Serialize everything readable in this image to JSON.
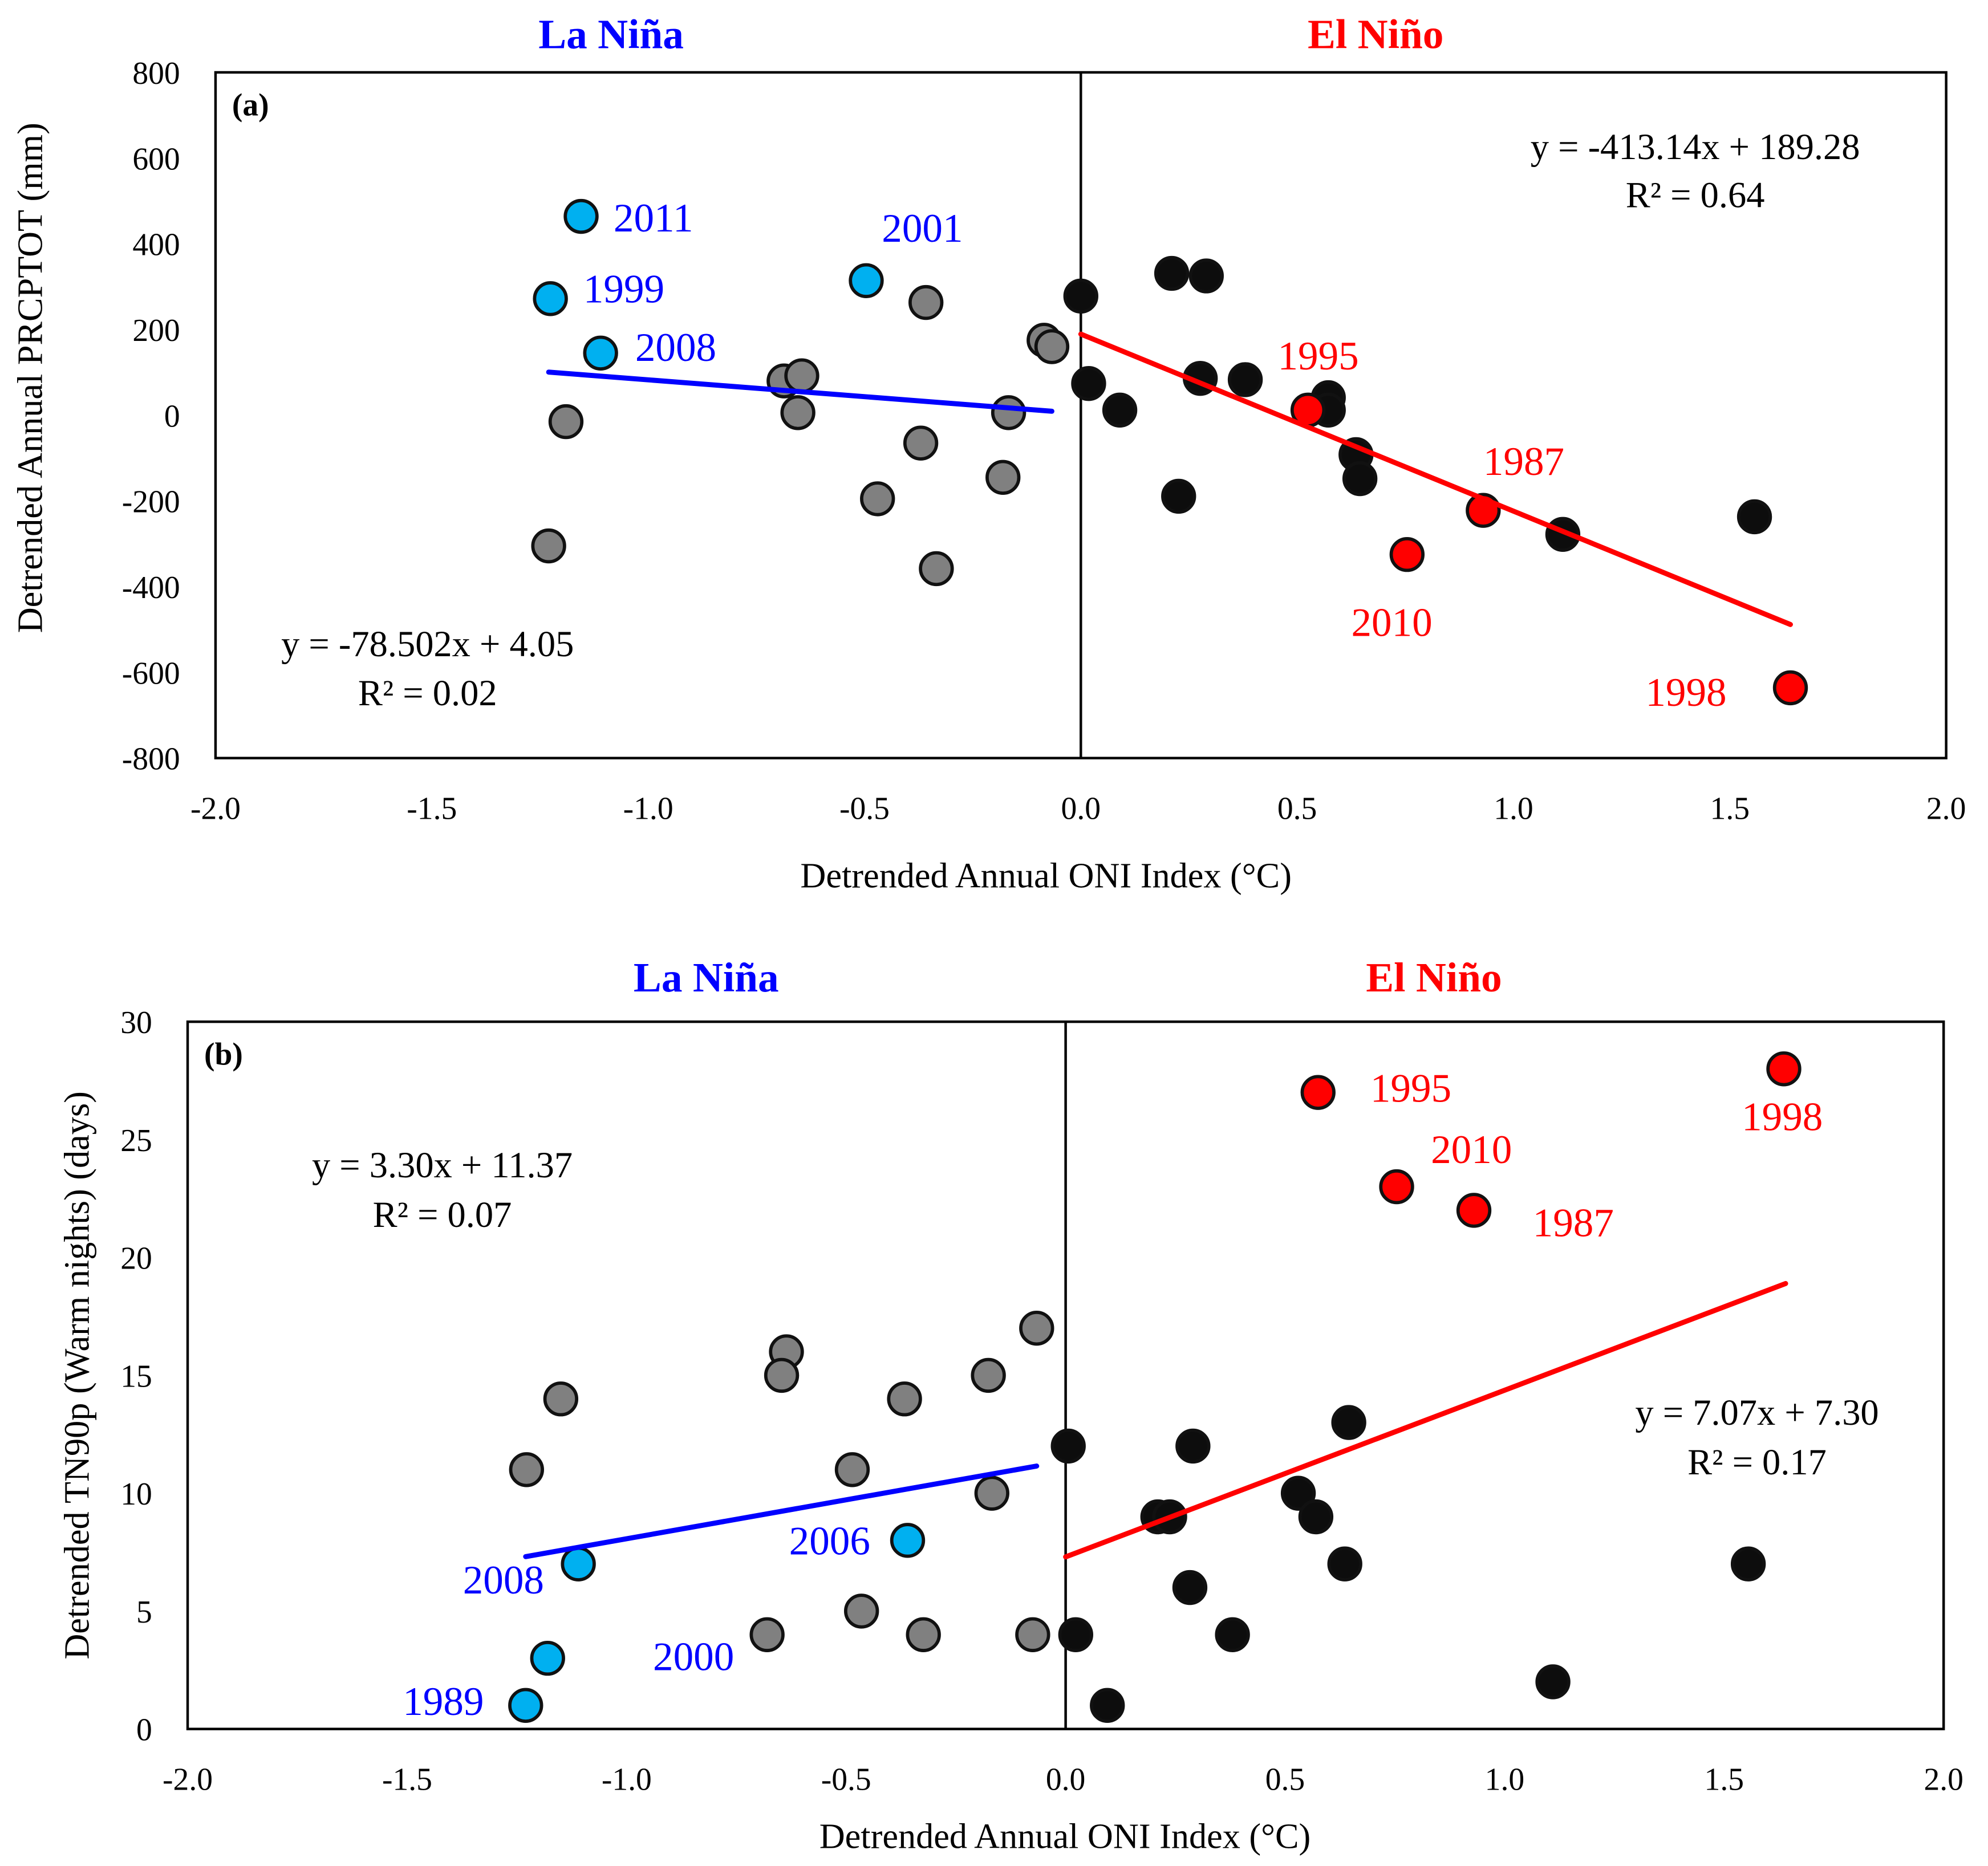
{
  "colors": {
    "la_nina": "#0000ff",
    "el_nino": "#ff0000",
    "la_nina_point": "#00b0f0",
    "neutral_la": "#808080",
    "neutral_el": "#0d0d0d"
  },
  "chart_data": [
    {
      "type": "scatter",
      "panel_label": "(a)",
      "title_left": "La Niña",
      "title_right": "El Niño",
      "xlabel": "Detrended Annual ONI Index (°C)",
      "ylabel": "Detrended Annual PRCPTOT (mm)",
      "xlim": [
        -2.0,
        2.0
      ],
      "ylim": [
        -800,
        800
      ],
      "xticks": [
        "-2.0",
        "-1.5",
        "-1.0",
        "-0.5",
        "0.0",
        "0.5",
        "1.0",
        "1.5",
        "2.0"
      ],
      "yticks": [
        "800",
        "600",
        "400",
        "200",
        "0",
        "-200",
        "-400",
        "-600",
        "-800"
      ],
      "series": [
        {
          "name": "La Niña (gray)",
          "color": "#808080",
          "points": [
            [
              -1.19,
              -15
            ],
            [
              -1.23,
              -305
            ],
            [
              -0.686,
              80
            ],
            [
              -0.645,
              92
            ],
            [
              -0.654,
              6
            ],
            [
              -0.358,
              263
            ],
            [
              -0.37,
              -65
            ],
            [
              -0.47,
              -195
            ],
            [
              -0.334,
              -358
            ],
            [
              -0.18,
              -145
            ],
            [
              -0.167,
              6
            ],
            [
              -0.085,
              175
            ],
            [
              -0.067,
              160
            ]
          ]
        },
        {
          "name": "La Niña (highlighted)",
          "color": "#00b0f0",
          "points": [
            [
              -1.155,
              464
            ],
            [
              -1.226,
              272
            ],
            [
              -1.11,
              145
            ],
            [
              -0.496,
              314
            ]
          ]
        },
        {
          "name": "El Niño (black)",
          "color": "#0d0d0d",
          "points": [
            [
              0.0,
              278
            ],
            [
              0.018,
              74
            ],
            [
              0.09,
              12
            ],
            [
              0.21,
              331
            ],
            [
              0.29,
              325
            ],
            [
              0.276,
              86
            ],
            [
              0.38,
              83
            ],
            [
              0.226,
              -189
            ],
            [
              0.572,
              41
            ],
            [
              0.572,
              12
            ],
            [
              0.636,
              -92
            ],
            [
              0.645,
              -148
            ],
            [
              1.114,
              -278
            ],
            [
              1.557,
              -237
            ]
          ]
        },
        {
          "name": "El Niño (highlighted)",
          "color": "#ff0000",
          "points": [
            [
              0.525,
              12
            ],
            [
              0.93,
              -222
            ],
            [
              0.754,
              -325
            ],
            [
              1.64,
              -636
            ]
          ]
        }
      ],
      "trendlines": [
        {
          "color": "#0000ff",
          "slope": -78.502,
          "intercept": 4.05,
          "x_range": [
            -1.23,
            -0.067
          ]
        },
        {
          "color": "#ff0000",
          "slope": -413.14,
          "intercept": 189.28,
          "x_range": [
            0.0,
            1.64
          ]
        }
      ],
      "annotations": [
        {
          "text": "2011",
          "x": -1.08,
          "y": 429,
          "color": "#0000ff",
          "anchor": "start"
        },
        {
          "text": "1999",
          "x": -1.15,
          "y": 263,
          "color": "#0000ff",
          "anchor": "start"
        },
        {
          "text": "2008",
          "x": -1.03,
          "y": 127,
          "color": "#0000ff",
          "anchor": "start"
        },
        {
          "text": "2001",
          "x": -0.46,
          "y": 405,
          "color": "#0000ff",
          "anchor": "start"
        },
        {
          "text": "1995",
          "x": 0.455,
          "y": 107,
          "color": "#ff0000",
          "anchor": "start"
        },
        {
          "text": "1987",
          "x": 0.93,
          "y": -139,
          "color": "#ff0000",
          "anchor": "start"
        },
        {
          "text": "2010",
          "x": 0.625,
          "y": -515,
          "color": "#ff0000",
          "anchor": "start"
        },
        {
          "text": "1998",
          "x": 1.305,
          "y": -678,
          "color": "#ff0000",
          "anchor": "start"
        }
      ],
      "equations": [
        {
          "line1": "y = -78.502x + 4.05",
          "line2": "R² = 0.02",
          "x": -1.51,
          "y1": -562,
          "y2": -677
        },
        {
          "line1": "y = -413.14x + 189.28",
          "line2": "R² = 0.64",
          "x": 1.42,
          "y1": 598,
          "y2": 485
        }
      ]
    },
    {
      "type": "scatter",
      "panel_label": "(b)",
      "title_left": "La Niña",
      "title_right": "El Niño",
      "xlabel": "Detrended Annual ONI Index (°C)",
      "ylabel": "Detrended TN90p (Warm nights) (days)",
      "xlim": [
        -2.0,
        2.0
      ],
      "ylim": [
        0,
        30
      ],
      "xticks": [
        "-2.0",
        "-1.5",
        "-1.0",
        "-0.5",
        "0.0",
        "0.5",
        "1.0",
        "1.5",
        "2.0"
      ],
      "yticks": [
        "30",
        "25",
        "20",
        "15",
        "10",
        "5",
        "0"
      ],
      "series": [
        {
          "name": "La Niña (gray)",
          "color": "#808080",
          "points": [
            [
              -1.228,
              11
            ],
            [
              -1.15,
              14
            ],
            [
              -0.636,
              16
            ],
            [
              -0.647,
              15
            ],
            [
              -0.367,
              14
            ],
            [
              -0.486,
              11
            ],
            [
              -0.176,
              15
            ],
            [
              -0.066,
              17
            ],
            [
              -0.168,
              10
            ],
            [
              -0.68,
              4
            ],
            [
              -0.465,
              5
            ],
            [
              -0.324,
              4
            ],
            [
              -0.075,
              4
            ]
          ]
        },
        {
          "name": "La Niña (highlighted)",
          "color": "#00b0f0",
          "points": [
            [
              -1.23,
              1
            ],
            [
              -1.18,
              3
            ],
            [
              -1.11,
              7
            ],
            [
              -0.36,
              8
            ]
          ]
        },
        {
          "name": "El Niño (black)",
          "color": "#0d0d0d",
          "points": [
            [
              0.006,
              12
            ],
            [
              0.023,
              4
            ],
            [
              0.095,
              1
            ],
            [
              0.21,
              9
            ],
            [
              0.237,
              9
            ],
            [
              0.29,
              12
            ],
            [
              0.283,
              6
            ],
            [
              0.38,
              4
            ],
            [
              0.53,
              10
            ],
            [
              0.57,
              9
            ],
            [
              0.645,
              13
            ],
            [
              0.636,
              7
            ],
            [
              1.11,
              2
            ],
            [
              1.555,
              7
            ]
          ]
        },
        {
          "name": "El Niño (highlighted)",
          "color": "#ff0000",
          "points": [
            [
              0.575,
              27
            ],
            [
              0.754,
              23
            ],
            [
              0.93,
              22
            ],
            [
              1.636,
              28
            ]
          ]
        }
      ],
      "trendlines": [
        {
          "color": "#0000ff",
          "slope": 3.3,
          "intercept": 11.37,
          "x_range": [
            -1.23,
            -0.066
          ]
        },
        {
          "color": "#ff0000",
          "slope": 7.07,
          "intercept": 7.3,
          "x_range": [
            0.0,
            1.64
          ]
        }
      ],
      "annotations": [
        {
          "text": "1995",
          "x": 0.694,
          "y": 26.6,
          "color": "#ff0000",
          "anchor": "start"
        },
        {
          "text": "2010",
          "x": 0.832,
          "y": 24.0,
          "color": "#ff0000",
          "anchor": "start"
        },
        {
          "text": "1987",
          "x": 1.064,
          "y": 20.9,
          "color": "#ff0000",
          "anchor": "start"
        },
        {
          "text": "1998",
          "x": 1.54,
          "y": 25.4,
          "color": "#ff0000",
          "anchor": "start"
        },
        {
          "text": "2006",
          "x": -0.63,
          "y": 7.4,
          "color": "#0000ff",
          "anchor": "start"
        },
        {
          "text": "2008",
          "x": -1.373,
          "y": 5.75,
          "color": "#0000ff",
          "anchor": "start"
        },
        {
          "text": "2000",
          "x": -0.94,
          "y": 2.5,
          "color": "#0000ff",
          "anchor": "start"
        },
        {
          "text": "1989",
          "x": -1.51,
          "y": 0.6,
          "color": "#0000ff",
          "anchor": "start"
        }
      ],
      "equations": [
        {
          "line1": "y = 3.30x + 11.37",
          "line2": "R² = 0.07",
          "x": -1.42,
          "y1": 23.4,
          "y2": 21.3
        },
        {
          "line1": "y = 7.07x + 7.30",
          "line2": "R² = 0.17",
          "x": 1.575,
          "y1": 12.9,
          "y2": 10.8
        }
      ]
    }
  ]
}
